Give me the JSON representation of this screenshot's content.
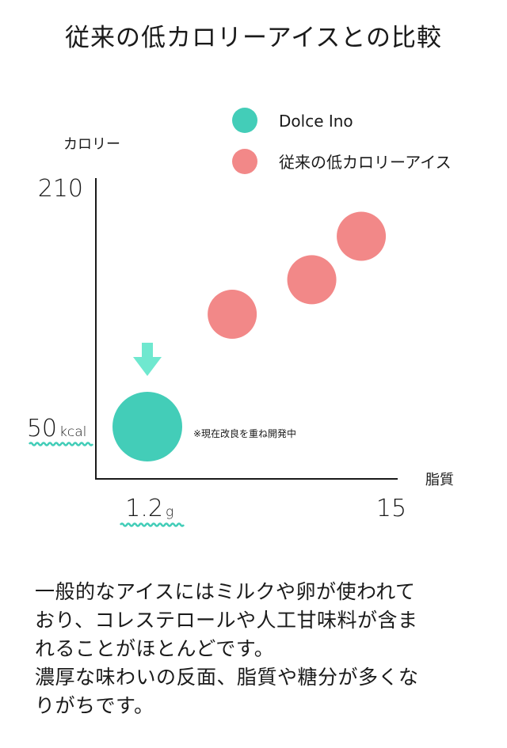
{
  "page": {
    "title": "従来の低カロリーアイスとの比較",
    "body_lines": [
      "一般的なアイスにはミルクや卵が使われて",
      "おり、コレステロールや人工甘味料が含ま",
      "れることがほとんどです。",
      "濃厚な味わいの反面、脂質や糖分が多くな",
      "りがちです。"
    ]
  },
  "colors": {
    "dolce": "#43cdb8",
    "conventional": "#f28888",
    "arrow": "#6fe8cf",
    "axis": "#1a1a1a"
  },
  "chart_data": {
    "type": "scatter",
    "ylabel": "カロリー",
    "xlabel": "脂質",
    "ylim": [
      50,
      210
    ],
    "xlim": [
      1.2,
      15
    ],
    "y_ticks": [
      {
        "value": 210,
        "label": "210",
        "unit": ""
      },
      {
        "value": 50,
        "label": "50",
        "unit": "kcal",
        "highlight": true
      }
    ],
    "x_ticks": [
      {
        "value": 1.2,
        "label": "1.2",
        "unit": "g",
        "highlight": true
      },
      {
        "value": 15,
        "label": "15",
        "unit": ""
      }
    ],
    "legend": {
      "placement": "top-right"
    },
    "series": [
      {
        "name": "Dolce Ino",
        "color": "#43cdb8",
        "points": [
          {
            "x": 1.2,
            "y": 50
          }
        ]
      },
      {
        "name": "従来の低カロリーアイス",
        "color": "#f28888",
        "points": [
          {
            "x": 6.0,
            "y": 125
          },
          {
            "x": 10.5,
            "y": 148
          },
          {
            "x": 13.3,
            "y": 177
          }
        ]
      }
    ],
    "annotations": [
      {
        "text": "※現在改良を重ね開発中",
        "anchor_series": 0
      }
    ]
  }
}
